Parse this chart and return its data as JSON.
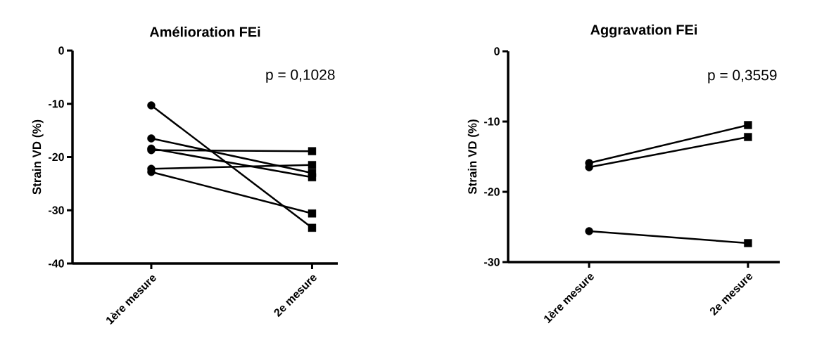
{
  "chart_data": [
    {
      "type": "line",
      "title": "Amélioration FEi",
      "ylabel": "Strain VD (%)",
      "categories": [
        "1ère mesure",
        "2e mesure"
      ],
      "ylim": [
        -40,
        0
      ],
      "yticks": [
        -40,
        -30,
        -20,
        -10,
        0
      ],
      "annotations": [
        "p = 0,1028"
      ],
      "marker": "none",
      "series": [
        {
          "color": "#000000",
          "values": [
            -10.3,
            -33.3
          ]
        },
        {
          "color": "#000000",
          "values": [
            -16.5,
            -23.0
          ]
        },
        {
          "color": "#000000",
          "values": [
            -18.4,
            -23.8
          ]
        },
        {
          "color": "#000000",
          "values": [
            -18.7,
            -18.9
          ]
        },
        {
          "color": "#000000",
          "values": [
            -22.2,
            -21.5
          ]
        },
        {
          "color": "#000000",
          "values": [
            -22.8,
            -30.6
          ]
        },
        {
          "type": "scatter",
          "marker": "circle",
          "color": "#000000",
          "x": [
            "1ère mesure",
            "1ère mesure",
            "1ère mesure",
            "1ère mesure",
            "1ère mesure",
            "1ère mesure"
          ],
          "values": [
            -10.3,
            -16.5,
            -18.4,
            -18.7,
            -22.2,
            -22.8
          ]
        },
        {
          "type": "scatter",
          "marker": "square",
          "color": "#000000",
          "x": [
            "2e mesure",
            "2e mesure",
            "2e mesure",
            "2e mesure",
            "2e mesure",
            "2e mesure"
          ],
          "values": [
            -33.3,
            -23.0,
            -23.8,
            -18.9,
            -21.5,
            -30.6
          ]
        }
      ]
    },
    {
      "type": "line",
      "title": "Aggravation FEi",
      "ylabel": "Strain VD (%)",
      "categories": [
        "1ère mesure",
        "2e mesure"
      ],
      "ylim": [
        -30,
        0
      ],
      "yticks": [
        -30,
        -20,
        -10,
        0
      ],
      "annotations": [
        "p = 0,3559"
      ],
      "marker": "none",
      "series": [
        {
          "color": "#000000",
          "values": [
            -15.9,
            -10.5
          ]
        },
        {
          "color": "#000000",
          "values": [
            -16.5,
            -12.2
          ]
        },
        {
          "color": "#000000",
          "values": [
            -25.6,
            -27.3
          ]
        },
        {
          "type": "scatter",
          "marker": "circle",
          "color": "#000000",
          "x": [
            "1ère mesure",
            "1ère mesure",
            "1ère mesure"
          ],
          "values": [
            -15.9,
            -16.5,
            -25.6
          ]
        },
        {
          "type": "scatter",
          "marker": "square",
          "color": "#000000",
          "x": [
            "2e mesure",
            "2e mesure",
            "2e mesure"
          ],
          "values": [
            -10.5,
            -12.2,
            -27.3
          ]
        }
      ]
    }
  ]
}
